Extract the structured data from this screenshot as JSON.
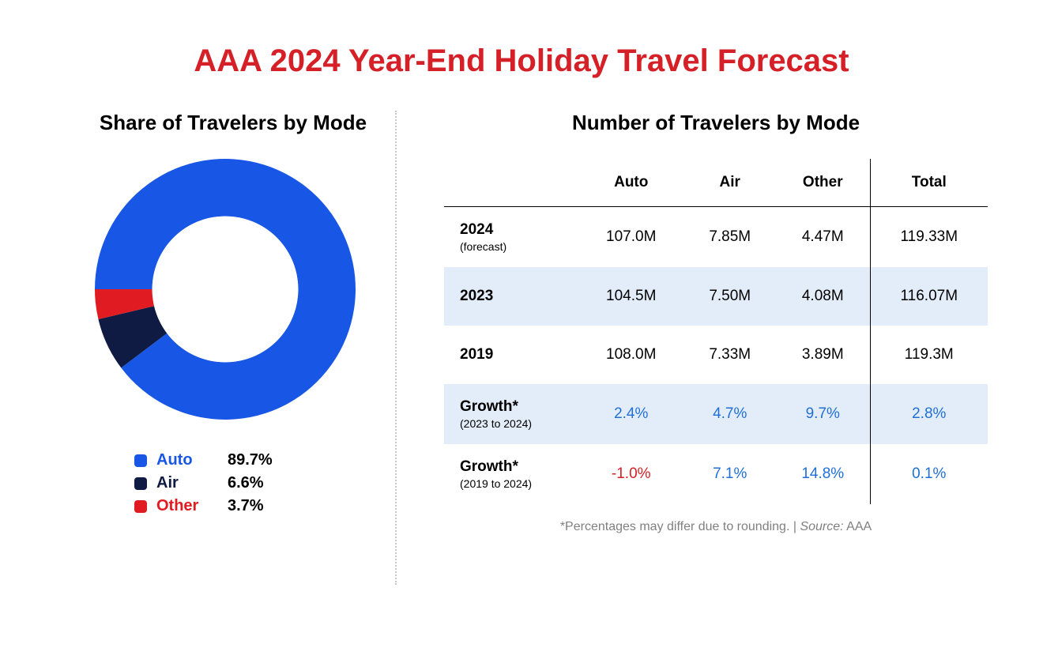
{
  "title": {
    "text": "AAA 2024 Year-End Holiday Travel Forecast",
    "color": "#d62027",
    "fontsize": 40
  },
  "left": {
    "subtitle": "Share of Travelers by Mode",
    "subtitle_fontsize": 26,
    "donut": {
      "type": "donut",
      "size": 330,
      "inner_ratio": 0.56,
      "start_angle": 180,
      "background": "#ffffff",
      "slices": [
        {
          "label": "Auto",
          "value": 89.7,
          "color": "#1857e6"
        },
        {
          "label": "Air",
          "value": 6.6,
          "color": "#0f1b42"
        },
        {
          "label": "Other",
          "value": 3.7,
          "color": "#e11b22"
        }
      ]
    },
    "legend": {
      "fontsize": 20,
      "items": [
        {
          "label": "Auto",
          "value": "89.7%",
          "color": "#1857e6",
          "label_color": "#1857e6"
        },
        {
          "label": "Air",
          "value": "6.6%",
          "color": "#0f1b42",
          "label_color": "#0f1b42"
        },
        {
          "label": "Other",
          "value": "3.7%",
          "color": "#e11b22",
          "label_color": "#e11b22"
        }
      ]
    }
  },
  "right": {
    "subtitle": "Number of Travelers by Mode",
    "subtitle_fontsize": 26,
    "table": {
      "fontsize": 19,
      "header_fontsize": 19,
      "columns": [
        "Auto",
        "Air",
        "Other",
        "Total"
      ],
      "rows": [
        {
          "label": "2024",
          "sublabel": "(forecast)",
          "cells": [
            "107.0M",
            "7.85M",
            "4.47M",
            "119.33M"
          ],
          "striped": false,
          "top_rule": true
        },
        {
          "label": "2023",
          "sublabel": "",
          "cells": [
            "104.5M",
            "7.50M",
            "4.08M",
            "116.07M"
          ],
          "striped": true,
          "top_rule": false
        },
        {
          "label": "2019",
          "sublabel": "",
          "cells": [
            "108.0M",
            "7.33M",
            "3.89M",
            "119.3M"
          ],
          "striped": false,
          "top_rule": false
        },
        {
          "label": "Growth*",
          "sublabel": "(2023 to 2024)",
          "cells": [
            "2.4%",
            "4.7%",
            "9.7%",
            "2.8%"
          ],
          "striped": true,
          "top_rule": false,
          "growth": true
        },
        {
          "label": "Growth*",
          "sublabel": "(2019 to 2024)",
          "cells": [
            "-1.0%",
            "7.1%",
            "14.8%",
            "0.1%"
          ],
          "striped": false,
          "top_rule": false,
          "growth": true,
          "neg_cols": [
            0
          ]
        }
      ]
    },
    "footnote": {
      "text": "*Percentages may differ due to rounding. | ",
      "source_label": "Source:",
      "source_value": " AAA",
      "fontsize": 16
    }
  }
}
